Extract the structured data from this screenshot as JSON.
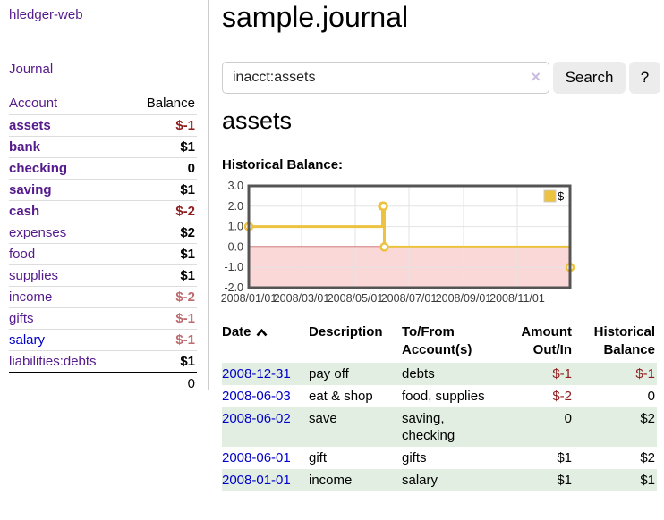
{
  "colors": {
    "accent_gold": "#edc240",
    "negative_strong": "#8f1d1d",
    "negative_muted": "#bd6a6e",
    "link_purple": "#551a8b",
    "link_blue": "#0000cc",
    "row_highlight_green": "#e1eee1",
    "negative_region_pink": "#fbd8d8",
    "zero_line_red": "#a40000"
  },
  "app": {
    "brand": "hledger-web"
  },
  "sidebar": {
    "nav_journal": "Journal",
    "accounts": {
      "headers": {
        "account": "Account",
        "balance": "Balance"
      },
      "rows": [
        {
          "name": "assets",
          "balance": "$-1",
          "indent": 1,
          "bold": true,
          "balance_style": "neg"
        },
        {
          "name": "bank",
          "balance": "$1",
          "indent": 2,
          "bold": true,
          "balance_style": "pos"
        },
        {
          "name": "checking",
          "balance": "0",
          "indent": 3,
          "bold": true,
          "balance_style": "pos"
        },
        {
          "name": "saving",
          "balance": "$1",
          "indent": 3,
          "bold": true,
          "balance_style": "pos"
        },
        {
          "name": "cash",
          "balance": "$-2",
          "indent": 2,
          "bold": true,
          "balance_style": "neg"
        },
        {
          "name": "expenses",
          "balance": "$2",
          "indent": 1,
          "bold": false,
          "balance_style": "pos"
        },
        {
          "name": "food",
          "balance": "$1",
          "indent": 2,
          "bold": false,
          "balance_style": "pos"
        },
        {
          "name": "supplies",
          "balance": "$1",
          "indent": 2,
          "bold": false,
          "balance_style": "pos"
        },
        {
          "name": "income",
          "balance": "$-2",
          "indent": 1,
          "bold": false,
          "balance_style": "neg-muted"
        },
        {
          "name": "gifts",
          "balance": "$-1",
          "indent": 2,
          "bold": false,
          "balance_style": "neg-muted"
        },
        {
          "name": "salary",
          "balance": "$-1",
          "indent": 2,
          "bold": false,
          "balance_style": "neg-muted",
          "link_style": "unvisited"
        },
        {
          "name": "liabilities:debts",
          "balance": "$1",
          "indent": 1,
          "bold": false,
          "balance_style": "pos"
        }
      ],
      "total": "0"
    }
  },
  "main": {
    "title": "sample.journal",
    "search": {
      "value": "inacct:assets",
      "clear_icon": "×",
      "button_label": "Search",
      "help_label": "?"
    },
    "account_heading": "assets",
    "register": {
      "headers": {
        "date": "Date",
        "sort_direction": "ascending",
        "description": "Description",
        "accounts": "To/From Account(s)",
        "amount": "Amount Out/In",
        "balance": "Historical Balance"
      },
      "rows": [
        {
          "date": "2008-12-31",
          "description": "pay off",
          "accounts": "debts",
          "amount": "$-1",
          "balance": "$-1",
          "amount_style": "neg",
          "balance_style": "neg"
        },
        {
          "date": "2008-06-03",
          "description": "eat & shop",
          "accounts": "food, supplies",
          "amount": "$-2",
          "balance": "0",
          "amount_style": "neg",
          "balance_style": "pos"
        },
        {
          "date": "2008-06-02",
          "description": "save",
          "accounts": "saving, checking",
          "amount": "0",
          "balance": "$2",
          "amount_style": "pos",
          "balance_style": "pos"
        },
        {
          "date": "2008-06-01",
          "description": "gift",
          "accounts": "gifts",
          "amount": "$1",
          "balance": "$2",
          "amount_style": "pos",
          "balance_style": "pos"
        },
        {
          "date": "2008-01-01",
          "description": "income",
          "accounts": "salary",
          "amount": "$1",
          "balance": "$1",
          "amount_style": "pos",
          "balance_style": "pos"
        }
      ]
    }
  },
  "chart_data": {
    "type": "line",
    "title": "Historical Balance:",
    "step": true,
    "series": [
      {
        "name": "$",
        "color": "#edc240",
        "points": [
          {
            "x": "2008-01-01",
            "y": 1
          },
          {
            "x": "2008-06-01",
            "y": 2
          },
          {
            "x": "2008-06-02",
            "y": 2
          },
          {
            "x": "2008-06-03",
            "y": 0
          },
          {
            "x": "2008-12-31",
            "y": -1
          }
        ]
      }
    ],
    "xlim": [
      "2008-01-01",
      "2008-12-31"
    ],
    "ylim": [
      -2,
      3
    ],
    "y_ticks": [
      "3.0",
      "2.0",
      "1.0",
      "0.0",
      "-1.0",
      "-2.0"
    ],
    "x_ticks": [
      "2008/01/01",
      "2008/03/01",
      "2008/05/01",
      "2008/07/01",
      "2008/09/01",
      "2008/11/01"
    ],
    "grid": true,
    "legend_position": "top-right",
    "negative_region_color": "#fbd8d8",
    "zero_line_color": "#a40000"
  }
}
